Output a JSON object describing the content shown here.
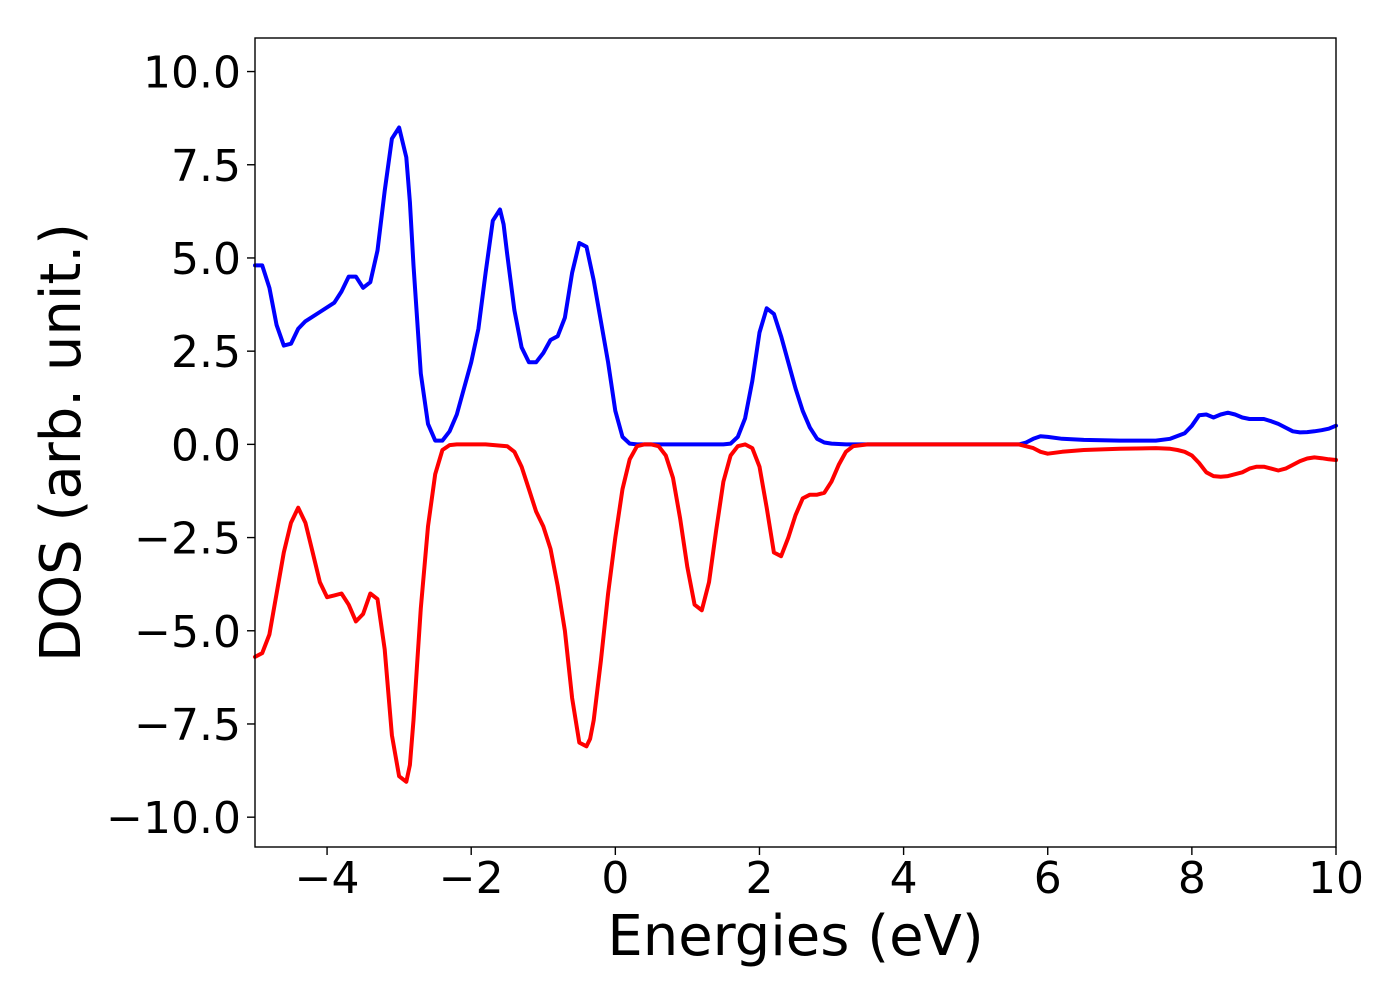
{
  "chart_data": {
    "type": "line",
    "title": "",
    "xlabel": "Energies (eV)",
    "ylabel": "DOS (arb. unit.)",
    "xlim": [
      -5,
      10
    ],
    "ylim": [
      -10.8,
      10.9
    ],
    "x_ticks": [
      -4,
      -2,
      0,
      2,
      4,
      6,
      8,
      10
    ],
    "x_tick_labels": [
      "−4",
      "−2",
      "0",
      "2",
      "4",
      "6",
      "8",
      "10"
    ],
    "y_ticks": [
      10,
      7.5,
      5,
      2.5,
      0,
      -2.5,
      -5,
      -7.5,
      -10
    ],
    "y_tick_labels": [
      "10.0",
      "7.5",
      "5.0",
      "2.5",
      "0.0",
      "−2.5",
      "−5.0",
      "−7.5",
      "−10.0"
    ],
    "grid": false,
    "legend": "none",
    "series": [
      {
        "color": "#0000ff",
        "x": [
          -5.0,
          -4.9,
          -4.8,
          -4.7,
          -4.6,
          -4.5,
          -4.4,
          -4.3,
          -4.1,
          -3.9,
          -3.8,
          -3.7,
          -3.6,
          -3.5,
          -3.4,
          -3.3,
          -3.2,
          -3.1,
          -3.0,
          -2.9,
          -2.85,
          -2.8,
          -2.7,
          -2.6,
          -2.5,
          -2.4,
          -2.3,
          -2.2,
          -2.1,
          -2.0,
          -1.9,
          -1.8,
          -1.7,
          -1.6,
          -1.55,
          -1.5,
          -1.4,
          -1.3,
          -1.2,
          -1.1,
          -1.0,
          -0.9,
          -0.8,
          -0.7,
          -0.6,
          -0.5,
          -0.4,
          -0.3,
          -0.2,
          -0.1,
          0.0,
          0.1,
          0.2,
          0.3,
          0.4,
          0.5,
          1.0,
          1.5,
          1.6,
          1.7,
          1.8,
          1.9,
          2.0,
          2.1,
          2.2,
          2.3,
          2.4,
          2.5,
          2.6,
          2.7,
          2.8,
          2.9,
          3.0,
          3.2,
          3.5,
          4.0,
          5.0,
          5.6,
          5.7,
          5.8,
          5.9,
          6.0,
          6.2,
          6.5,
          7.0,
          7.5,
          7.7,
          7.9,
          8.0,
          8.1,
          8.2,
          8.3,
          8.4,
          8.5,
          8.6,
          8.7,
          8.8,
          8.9,
          9.0,
          9.1,
          9.2,
          9.3,
          9.4,
          9.5,
          9.6,
          9.7,
          9.8,
          9.9,
          10.0
        ],
        "y": [
          4.8,
          4.8,
          4.2,
          3.2,
          2.65,
          2.7,
          3.1,
          3.3,
          3.55,
          3.8,
          4.1,
          4.5,
          4.5,
          4.2,
          4.35,
          5.2,
          6.8,
          8.2,
          8.5,
          7.7,
          6.5,
          4.8,
          1.9,
          0.55,
          0.1,
          0.1,
          0.35,
          0.8,
          1.5,
          2.2,
          3.1,
          4.6,
          6.0,
          6.3,
          5.9,
          5.1,
          3.6,
          2.6,
          2.2,
          2.2,
          2.45,
          2.8,
          2.9,
          3.4,
          4.6,
          5.4,
          5.3,
          4.4,
          3.3,
          2.2,
          0.9,
          0.2,
          0.02,
          0.0,
          0.0,
          0.0,
          0.0,
          0.0,
          0.02,
          0.2,
          0.7,
          1.7,
          3.0,
          3.65,
          3.5,
          2.9,
          2.2,
          1.5,
          0.9,
          0.45,
          0.15,
          0.05,
          0.02,
          0.0,
          0.0,
          0.0,
          0.0,
          0.0,
          0.05,
          0.15,
          0.22,
          0.2,
          0.15,
          0.12,
          0.1,
          0.1,
          0.15,
          0.3,
          0.5,
          0.78,
          0.8,
          0.72,
          0.8,
          0.85,
          0.8,
          0.72,
          0.68,
          0.68,
          0.68,
          0.62,
          0.55,
          0.45,
          0.35,
          0.32,
          0.33,
          0.35,
          0.38,
          0.42,
          0.5
        ]
      },
      {
        "color": "#ff0000",
        "x": [
          -5.0,
          -4.9,
          -4.8,
          -4.7,
          -4.6,
          -4.5,
          -4.4,
          -4.3,
          -4.2,
          -4.1,
          -4.0,
          -3.9,
          -3.8,
          -3.7,
          -3.6,
          -3.5,
          -3.4,
          -3.3,
          -3.2,
          -3.1,
          -3.0,
          -2.9,
          -2.85,
          -2.8,
          -2.75,
          -2.7,
          -2.6,
          -2.5,
          -2.4,
          -2.3,
          -2.2,
          -2.1,
          -2.0,
          -1.8,
          -1.5,
          -1.4,
          -1.3,
          -1.2,
          -1.1,
          -1.0,
          -0.9,
          -0.8,
          -0.7,
          -0.6,
          -0.5,
          -0.4,
          -0.35,
          -0.3,
          -0.2,
          -0.1,
          0.0,
          0.1,
          0.2,
          0.3,
          0.4,
          0.5,
          0.6,
          0.7,
          0.8,
          0.9,
          1.0,
          1.1,
          1.2,
          1.3,
          1.4,
          1.5,
          1.6,
          1.7,
          1.8,
          1.9,
          2.0,
          2.1,
          2.2,
          2.3,
          2.4,
          2.5,
          2.6,
          2.7,
          2.8,
          2.9,
          3.0,
          3.1,
          3.2,
          3.3,
          3.5,
          4.0,
          5.0,
          5.6,
          5.8,
          5.9,
          6.0,
          6.2,
          6.5,
          7.0,
          7.5,
          7.7,
          7.8,
          7.9,
          8.0,
          8.1,
          8.2,
          8.3,
          8.4,
          8.5,
          8.6,
          8.7,
          8.8,
          8.9,
          9.0,
          9.1,
          9.2,
          9.3,
          9.4,
          9.5,
          9.6,
          9.7,
          9.8,
          9.9,
          10.0
        ],
        "y": [
          -5.7,
          -5.6,
          -5.1,
          -4.0,
          -2.9,
          -2.1,
          -1.7,
          -2.1,
          -2.9,
          -3.7,
          -4.1,
          -4.05,
          -4.0,
          -4.3,
          -4.75,
          -4.55,
          -4.0,
          -4.15,
          -5.5,
          -7.8,
          -8.9,
          -9.05,
          -8.6,
          -7.4,
          -5.9,
          -4.4,
          -2.2,
          -0.8,
          -0.15,
          -0.02,
          0.0,
          0.0,
          0.0,
          0.0,
          -0.05,
          -0.2,
          -0.6,
          -1.2,
          -1.8,
          -2.2,
          -2.8,
          -3.8,
          -5.0,
          -6.8,
          -8.0,
          -8.1,
          -7.9,
          -7.4,
          -5.8,
          -4.0,
          -2.5,
          -1.2,
          -0.4,
          -0.05,
          0.0,
          0.0,
          -0.05,
          -0.3,
          -0.9,
          -2.0,
          -3.3,
          -4.3,
          -4.45,
          -3.7,
          -2.3,
          -1.0,
          -0.3,
          -0.05,
          0.0,
          -0.1,
          -0.6,
          -1.7,
          -2.9,
          -3.0,
          -2.5,
          -1.9,
          -1.45,
          -1.35,
          -1.35,
          -1.3,
          -1.0,
          -0.55,
          -0.2,
          -0.05,
          0.0,
          0.0,
          0.0,
          0.0,
          -0.1,
          -0.2,
          -0.25,
          -0.2,
          -0.15,
          -0.12,
          -0.1,
          -0.12,
          -0.15,
          -0.2,
          -0.3,
          -0.5,
          -0.75,
          -0.85,
          -0.87,
          -0.85,
          -0.8,
          -0.75,
          -0.65,
          -0.6,
          -0.6,
          -0.65,
          -0.7,
          -0.65,
          -0.55,
          -0.45,
          -0.38,
          -0.35,
          -0.37,
          -0.4,
          -0.42
        ]
      }
    ]
  }
}
